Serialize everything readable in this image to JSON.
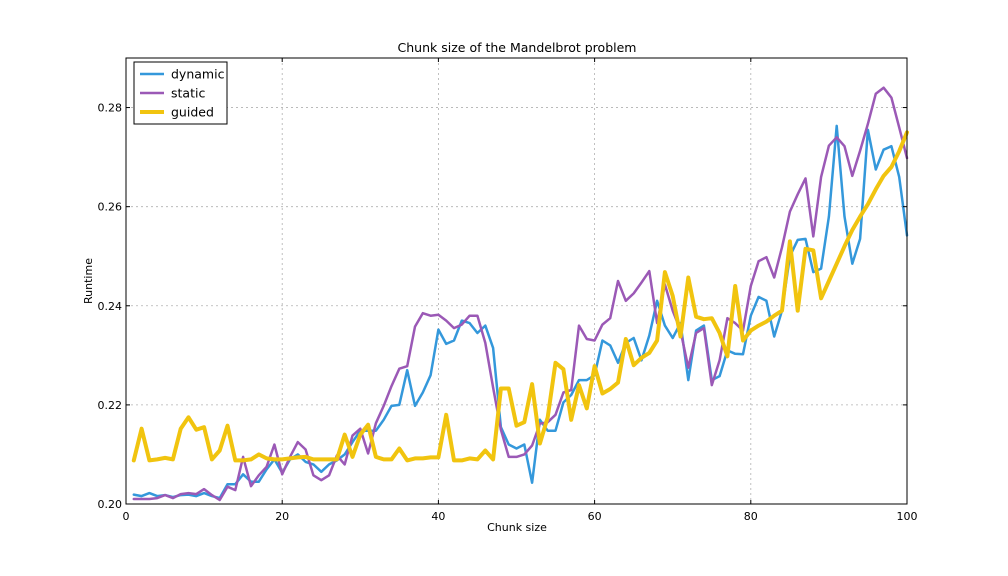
{
  "chart_data": {
    "type": "line",
    "title": "Chunk size of the Mandelbrot problem",
    "xlabel": "Chunk size",
    "ylabel": "Runtime",
    "xlim": [
      0,
      100
    ],
    "ylim": [
      0.2,
      0.29
    ],
    "xticks": [
      0,
      20,
      40,
      60,
      80,
      100
    ],
    "yticks": [
      0.2,
      0.22,
      0.24,
      0.26,
      0.28
    ],
    "ytick_labels": [
      "0.20",
      "0.22",
      "0.24",
      "0.26",
      "0.28"
    ],
    "grid": true,
    "legend_position": "top-left",
    "x": [
      1,
      2,
      3,
      4,
      5,
      6,
      7,
      8,
      9,
      10,
      11,
      12,
      13,
      14,
      15,
      16,
      17,
      18,
      19,
      20,
      21,
      22,
      23,
      24,
      25,
      26,
      27,
      28,
      29,
      30,
      31,
      32,
      33,
      34,
      35,
      36,
      37,
      38,
      39,
      40,
      41,
      42,
      43,
      44,
      45,
      46,
      47,
      48,
      49,
      50,
      51,
      52,
      53,
      54,
      55,
      56,
      57,
      58,
      59,
      60,
      61,
      62,
      63,
      64,
      65,
      66,
      67,
      68,
      69,
      70,
      71,
      72,
      73,
      74,
      75,
      76,
      77,
      78,
      79,
      80,
      81,
      82,
      83,
      84,
      85,
      86,
      87,
      88,
      89,
      90,
      91,
      92,
      93,
      94,
      95,
      96,
      97,
      98,
      99,
      100
    ],
    "series": [
      {
        "name": "dynamic",
        "color": "#3498db",
        "width": 2.5,
        "values": [
          0.2019,
          0.2016,
          0.2022,
          0.2016,
          0.2018,
          0.2014,
          0.2018,
          0.2019,
          0.2016,
          0.2022,
          0.2016,
          0.2012,
          0.204,
          0.204,
          0.206,
          0.2045,
          0.2045,
          0.207,
          0.209,
          0.2063,
          0.209,
          0.21,
          0.2085,
          0.208,
          0.2065,
          0.208,
          0.2088,
          0.21,
          0.2125,
          0.2148,
          0.2148,
          0.2148,
          0.217,
          0.2198,
          0.22,
          0.227,
          0.2198,
          0.2225,
          0.226,
          0.2352,
          0.2323,
          0.233,
          0.237,
          0.2365,
          0.2345,
          0.236,
          0.2315,
          0.2155,
          0.212,
          0.2112,
          0.212,
          0.2043,
          0.217,
          0.2148,
          0.2148,
          0.2205,
          0.222,
          0.225,
          0.225,
          0.226,
          0.233,
          0.232,
          0.2285,
          0.2325,
          0.2335,
          0.229,
          0.234,
          0.241,
          0.236,
          0.2335,
          0.2365,
          0.225,
          0.235,
          0.236,
          0.225,
          0.2258,
          0.231,
          0.2303,
          0.2302,
          0.238,
          0.2418,
          0.241,
          0.2338,
          0.239,
          0.25,
          0.2533,
          0.2535,
          0.2468,
          0.2475,
          0.258,
          0.2763,
          0.258,
          0.2485,
          0.2535,
          0.2755,
          0.2675,
          0.2715,
          0.2722,
          0.266,
          0.2542
        ]
      },
      {
        "name": "static",
        "color": "#9b59b6",
        "width": 2.5,
        "values": [
          0.201,
          0.201,
          0.201,
          0.2012,
          0.2018,
          0.2012,
          0.202,
          0.2022,
          0.202,
          0.203,
          0.2018,
          0.2008,
          0.2035,
          0.2028,
          0.2095,
          0.2036,
          0.2058,
          0.2075,
          0.212,
          0.206,
          0.2095,
          0.2125,
          0.211,
          0.2058,
          0.2048,
          0.2058,
          0.2098,
          0.208,
          0.2138,
          0.2152,
          0.2102,
          0.2163,
          0.2198,
          0.2238,
          0.2273,
          0.2278,
          0.2358,
          0.2385,
          0.238,
          0.2382,
          0.237,
          0.2355,
          0.2362,
          0.238,
          0.238,
          0.2325,
          0.2235,
          0.215,
          0.2095,
          0.2095,
          0.21,
          0.2118,
          0.2162,
          0.2165,
          0.218,
          0.2225,
          0.223,
          0.236,
          0.2333,
          0.233,
          0.2362,
          0.2375,
          0.245,
          0.241,
          0.2425,
          0.2447,
          0.247,
          0.2365,
          0.2443,
          0.239,
          0.235,
          0.2275,
          0.2345,
          0.2355,
          0.224,
          0.229,
          0.2375,
          0.2365,
          0.235,
          0.244,
          0.249,
          0.2498,
          0.2457,
          0.2518,
          0.259,
          0.2625,
          0.2657,
          0.254,
          0.266,
          0.2723,
          0.274,
          0.2722,
          0.2662,
          0.2713,
          0.2767,
          0.2828,
          0.284,
          0.282,
          0.276,
          0.2698
        ]
      },
      {
        "name": "guided",
        "color": "#f1c40f",
        "width": 4,
        "values": [
          0.2088,
          0.2152,
          0.2088,
          0.209,
          0.2093,
          0.209,
          0.2152,
          0.2175,
          0.215,
          0.2155,
          0.209,
          0.2108,
          0.2158,
          0.2088,
          0.2088,
          0.209,
          0.21,
          0.2092,
          0.209,
          0.209,
          0.2092,
          0.2094,
          0.2095,
          0.209,
          0.209,
          0.209,
          0.209,
          0.214,
          0.2095,
          0.214,
          0.216,
          0.2095,
          0.209,
          0.209,
          0.2112,
          0.2088,
          0.2092,
          0.2092,
          0.2094,
          0.2094,
          0.218,
          0.2088,
          0.2088,
          0.2092,
          0.209,
          0.2108,
          0.209,
          0.2233,
          0.2233,
          0.2158,
          0.2165,
          0.2242,
          0.2122,
          0.2175,
          0.2285,
          0.2272,
          0.217,
          0.224,
          0.2193,
          0.2278,
          0.2223,
          0.2232,
          0.2245,
          0.2333,
          0.228,
          0.2295,
          0.2305,
          0.233,
          0.2468,
          0.242,
          0.2338,
          0.2457,
          0.2378,
          0.2373,
          0.2375,
          0.2345,
          0.2298,
          0.244,
          0.233,
          0.235,
          0.236,
          0.2368,
          0.238,
          0.239,
          0.253,
          0.239,
          0.2515,
          0.2512,
          0.2415,
          0.245,
          0.2485,
          0.252,
          0.2553,
          0.258,
          0.2605,
          0.2635,
          0.2662,
          0.268,
          0.2712,
          0.275
        ]
      }
    ]
  }
}
